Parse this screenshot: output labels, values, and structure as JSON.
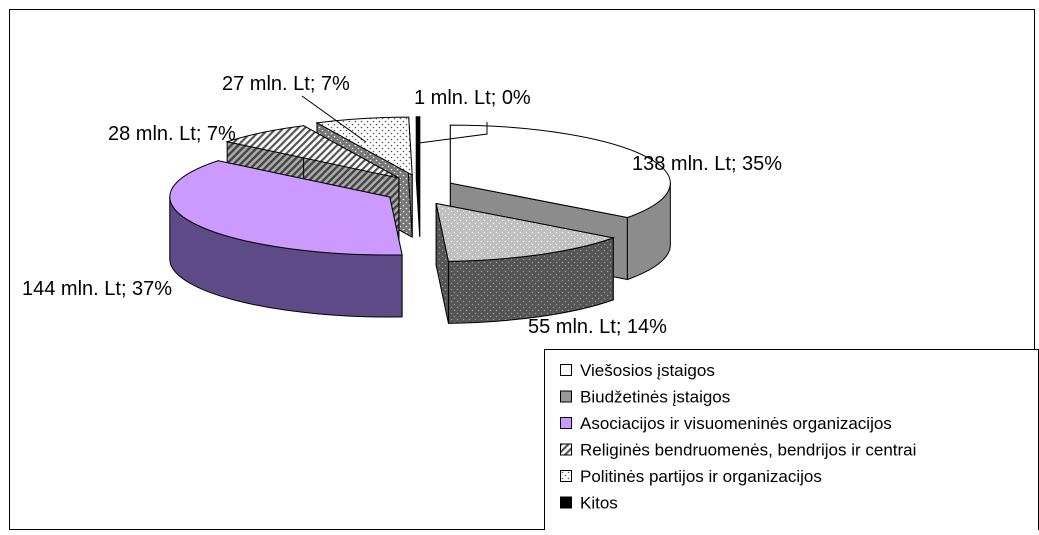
{
  "chart_data": {
    "type": "pie",
    "style": "3d-exploded",
    "unit": "mln. Lt",
    "slices": [
      {
        "category": "Viešosios įstaigos",
        "value": 138,
        "percent": 35,
        "label": "138 mln. Lt; 35%",
        "top_color": "#ffffff",
        "side_color": "#8c8c8c",
        "pattern": "none"
      },
      {
        "category": "Biudžetinės įstaigos",
        "value": 55,
        "percent": 14,
        "label": "55 mln. Lt; 14%",
        "top_color": "#bfbfbf",
        "side_color": "#555555",
        "pattern": "dots"
      },
      {
        "category": "Asociacijos ir visuomeninės organizacijos",
        "value": 144,
        "percent": 37,
        "label": "144 mln. Lt; 37%",
        "top_color": "#cc99ff",
        "side_color": "#5e4a87",
        "pattern": "none"
      },
      {
        "category": "Religinės bendruomenės, bendrijos ir centrai",
        "value": 28,
        "percent": 7,
        "label": "28 mln. Lt; 7%",
        "top_color": "#ffffff",
        "side_color": "#666666",
        "pattern": "hatch"
      },
      {
        "category": "Politinės partijos ir organizacijos",
        "value": 27,
        "percent": 7,
        "label": "27 mln. Lt; 7%",
        "top_color": "#ffffff",
        "side_color": "#777777",
        "pattern": "dots"
      },
      {
        "category": "Kitos",
        "value": 1,
        "percent": 0,
        "label": "1 mln. Lt; 0%",
        "top_color": "#000000",
        "side_color": "#000000",
        "pattern": "none"
      }
    ],
    "legend": {
      "placement": "bottom-right",
      "items": [
        "Viešosios įstaigos",
        "Biudžetinės įstaigos",
        "Asociacijos ir visuomeninės organizacijos",
        "Religinės bendruomenės, bendrijos ir centrai",
        "Politinės partijos ir organizacijos",
        "Kitos"
      ]
    }
  }
}
